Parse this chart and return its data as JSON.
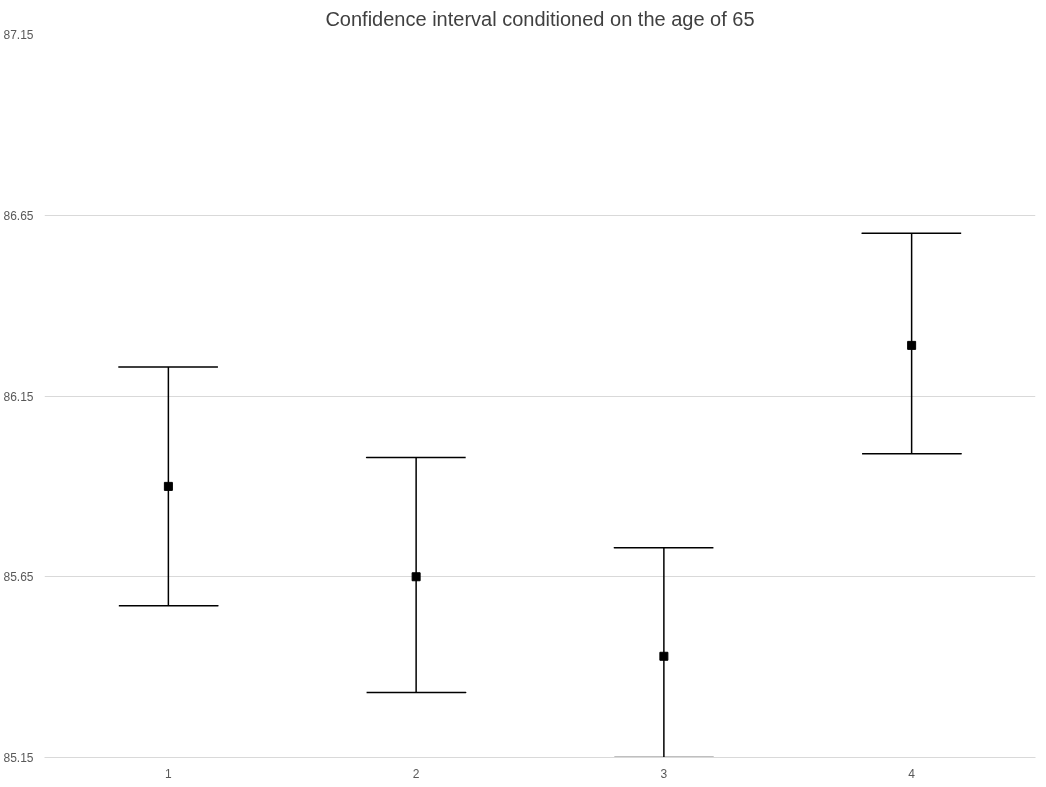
{
  "chart_data": {
    "type": "scatter",
    "title": "Confidence interval conditioned on the age of 65",
    "categories": [
      "1",
      "2",
      "3",
      "4"
    ],
    "values": [
      85.9,
      85.65,
      85.43,
      86.29
    ],
    "errors": [
      [
        85.57,
        86.23
      ],
      [
        85.33,
        85.98
      ],
      [
        85.15,
        85.73
      ],
      [
        85.99,
        86.6
      ]
    ],
    "color": "#000000",
    "marker": "square",
    "ylim": [
      85.15,
      87.15
    ],
    "yticks": [
      85.15,
      85.65,
      86.15,
      86.65,
      87.15
    ],
    "grid": "y"
  }
}
